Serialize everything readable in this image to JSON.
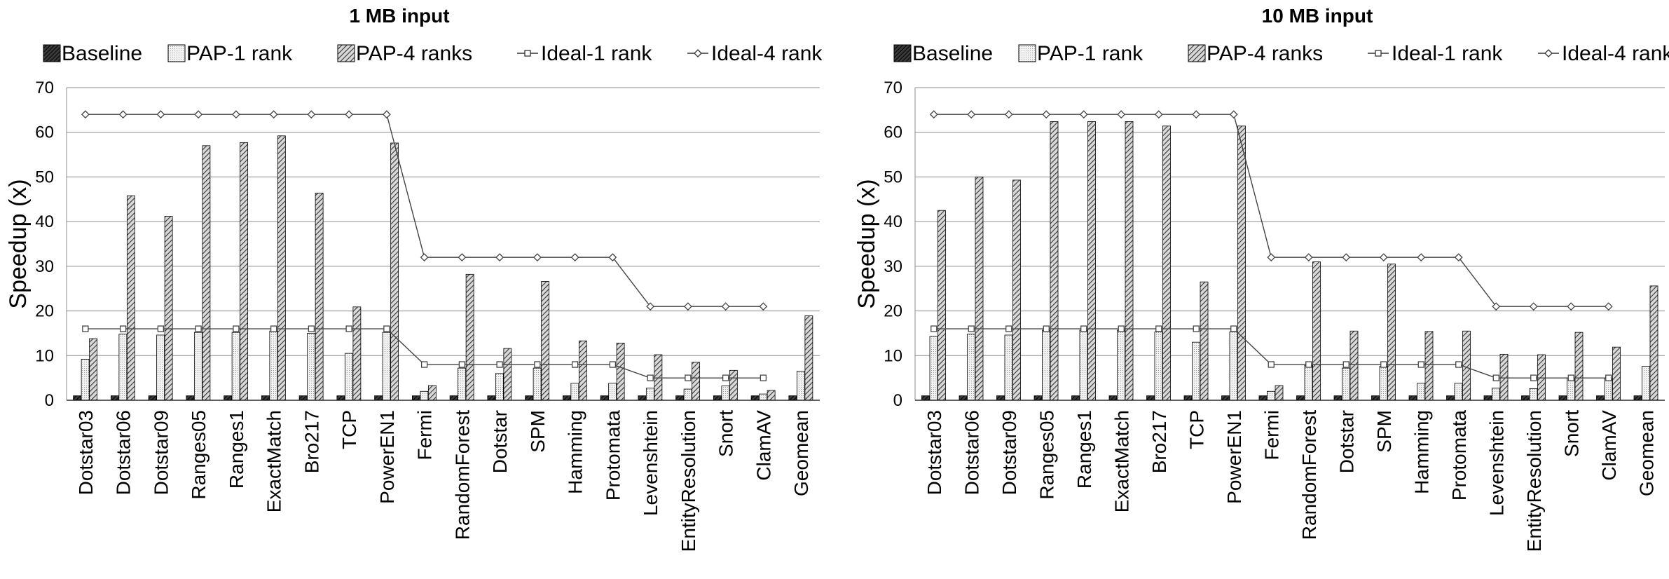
{
  "chart_data": [
    {
      "type": "bar",
      "title": "1 MB input",
      "ylabel": "Speedup (x)",
      "xlabel": "",
      "ylim": [
        0,
        70
      ],
      "yticks": [
        0,
        10,
        20,
        30,
        40,
        50,
        60,
        70
      ],
      "grid": true,
      "legend_position": "top",
      "categories": [
        "Dotstar03",
        "Dotstar06",
        "Dotstar09",
        "Ranges05",
        "Ranges1",
        "ExactMatch",
        "Bro217",
        "TCP",
        "PowerEN1",
        "Fermi",
        "RandomForest",
        "Dotstar",
        "SPM",
        "Hamming",
        "Protomata",
        "Levenshtein",
        "EntityResolution",
        "Snort",
        "ClamAV",
        "Geomean"
      ],
      "series": [
        {
          "name": "Baseline",
          "kind": "bar",
          "values": [
            1,
            1,
            1,
            1,
            1,
            1,
            1,
            1,
            1,
            1,
            1,
            1,
            1,
            1,
            1,
            1,
            1,
            1,
            1,
            1
          ]
        },
        {
          "name": "PAP-1 rank",
          "kind": "bar",
          "values": [
            9.2,
            14.8,
            14.6,
            15.2,
            15.2,
            15.5,
            15.0,
            10.5,
            15.2,
            2.0,
            7.2,
            6.0,
            7.2,
            3.8,
            3.8,
            2.7,
            2.5,
            3.2,
            1.4,
            6.5
          ]
        },
        {
          "name": "PAP-4 ranks",
          "kind": "bar",
          "values": [
            13.8,
            45.8,
            41.2,
            57.0,
            57.7,
            59.2,
            46.4,
            20.9,
            57.6,
            3.3,
            28.2,
            11.6,
            26.6,
            13.3,
            12.8,
            10.2,
            8.5,
            6.7,
            2.2,
            18.9
          ]
        },
        {
          "name": "Ideal-1 rank",
          "kind": "line",
          "values": [
            16,
            16,
            16,
            16,
            16,
            16,
            16,
            16,
            16,
            8,
            8,
            8,
            8,
            8,
            8,
            5,
            5,
            5,
            5,
            null
          ]
        },
        {
          "name": "Ideal-4 rank",
          "kind": "line",
          "values": [
            64,
            64,
            64,
            64,
            64,
            64,
            64,
            64,
            64,
            32,
            32,
            32,
            32,
            32,
            32,
            21,
            21,
            21,
            21,
            null
          ]
        }
      ]
    },
    {
      "type": "bar",
      "title": "10 MB input",
      "ylabel": "Speedup (x)",
      "xlabel": "",
      "ylim": [
        0,
        70
      ],
      "yticks": [
        0,
        10,
        20,
        30,
        40,
        50,
        60,
        70
      ],
      "grid": true,
      "legend_position": "top",
      "categories": [
        "Dotstar03",
        "Dotstar06",
        "Dotstar09",
        "Ranges05",
        "Ranges1",
        "ExactMatch",
        "Bro217",
        "TCP",
        "PowerEN1",
        "Fermi",
        "RandomForest",
        "Dotstar",
        "SPM",
        "Hamming",
        "Protomata",
        "Levenshtein",
        "EntityResolution",
        "Snort",
        "ClamAV",
        "Geomean"
      ],
      "series": [
        {
          "name": "Baseline",
          "kind": "bar",
          "values": [
            1,
            1,
            1,
            1,
            1,
            1,
            1,
            1,
            1,
            1,
            1,
            1,
            1,
            1,
            1,
            1,
            1,
            1,
            1,
            1
          ]
        },
        {
          "name": "PAP-1 rank",
          "kind": "bar",
          "values": [
            14.3,
            14.8,
            14.6,
            15.7,
            15.7,
            15.7,
            15.3,
            13.0,
            15.3,
            2.0,
            7.8,
            7.2,
            7.6,
            3.8,
            3.8,
            2.7,
            2.6,
            5.0,
            4.8,
            7.6
          ]
        },
        {
          "name": "PAP-4 ranks",
          "kind": "bar",
          "values": [
            42.5,
            50.0,
            49.3,
            62.4,
            62.4,
            62.4,
            61.4,
            26.5,
            61.4,
            3.3,
            31.0,
            15.5,
            30.5,
            15.4,
            15.5,
            10.3,
            10.2,
            15.2,
            11.9,
            25.6
          ]
        },
        {
          "name": "Ideal-1 rank",
          "kind": "line",
          "values": [
            16,
            16,
            16,
            16,
            16,
            16,
            16,
            16,
            16,
            8,
            8,
            8,
            8,
            8,
            8,
            5,
            5,
            5,
            5,
            null
          ]
        },
        {
          "name": "Ideal-4 rank",
          "kind": "line",
          "values": [
            64,
            64,
            64,
            64,
            64,
            64,
            64,
            64,
            64,
            32,
            32,
            32,
            32,
            32,
            32,
            21,
            21,
            21,
            21,
            null
          ]
        }
      ]
    }
  ]
}
